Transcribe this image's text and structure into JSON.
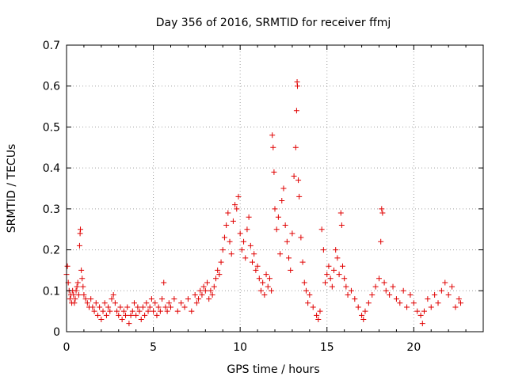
{
  "chart_data": {
    "type": "scatter",
    "title": "Day 356 of 2016, SRMTID for receiver ffmj",
    "xlabel": "GPS time / hours",
    "ylabel": "SRMTID / TECUs",
    "xlim": [
      0,
      24
    ],
    "ylim": [
      0,
      0.7
    ],
    "xticks": [
      "0",
      "5",
      "10",
      "15",
      "20"
    ],
    "xtick_values": [
      0,
      5,
      10,
      15,
      20
    ],
    "yticks": [
      "0",
      "0.1",
      "0.2",
      "0.3",
      "0.4",
      "0.5",
      "0.6",
      "0.7"
    ],
    "ytick_values": [
      0,
      0.1,
      0.2,
      0.3,
      0.4,
      0.5,
      0.6,
      0.7
    ],
    "grid": true,
    "marker": "+",
    "color": "#e00000",
    "series": [
      {
        "name": "SRMTID",
        "points": [
          [
            0.0,
            0.14
          ],
          [
            0.05,
            0.16
          ],
          [
            0.1,
            0.12
          ],
          [
            0.15,
            0.1
          ],
          [
            0.2,
            0.08
          ],
          [
            0.25,
            0.09
          ],
          [
            0.3,
            0.07
          ],
          [
            0.35,
            0.1
          ],
          [
            0.4,
            0.09
          ],
          [
            0.45,
            0.07
          ],
          [
            0.5,
            0.08
          ],
          [
            0.55,
            0.1
          ],
          [
            0.6,
            0.11
          ],
          [
            0.65,
            0.12
          ],
          [
            0.7,
            0.09
          ],
          [
            0.75,
            0.21
          ],
          [
            0.78,
            0.24
          ],
          [
            0.8,
            0.25
          ],
          [
            0.85,
            0.15
          ],
          [
            0.9,
            0.13
          ],
          [
            0.95,
            0.11
          ],
          [
            1.0,
            0.09
          ],
          [
            1.1,
            0.08
          ],
          [
            1.2,
            0.07
          ],
          [
            1.3,
            0.06
          ],
          [
            1.4,
            0.08
          ],
          [
            1.5,
            0.06
          ],
          [
            1.6,
            0.05
          ],
          [
            1.7,
            0.07
          ],
          [
            1.8,
            0.04
          ],
          [
            1.9,
            0.06
          ],
          [
            2.0,
            0.03
          ],
          [
            2.1,
            0.05
          ],
          [
            2.2,
            0.07
          ],
          [
            2.3,
            0.04
          ],
          [
            2.4,
            0.06
          ],
          [
            2.5,
            0.05
          ],
          [
            2.6,
            0.08
          ],
          [
            2.7,
            0.09
          ],
          [
            2.8,
            0.07
          ],
          [
            2.9,
            0.05
          ],
          [
            3.0,
            0.04
          ],
          [
            3.1,
            0.06
          ],
          [
            3.2,
            0.03
          ],
          [
            3.3,
            0.05
          ],
          [
            3.4,
            0.04
          ],
          [
            3.5,
            0.06
          ],
          [
            3.6,
            0.02
          ],
          [
            3.7,
            0.04
          ],
          [
            3.8,
            0.05
          ],
          [
            3.9,
            0.07
          ],
          [
            4.0,
            0.04
          ],
          [
            4.1,
            0.06
          ],
          [
            4.2,
            0.05
          ],
          [
            4.3,
            0.03
          ],
          [
            4.4,
            0.06
          ],
          [
            4.5,
            0.04
          ],
          [
            4.6,
            0.07
          ],
          [
            4.7,
            0.05
          ],
          [
            4.8,
            0.06
          ],
          [
            4.9,
            0.08
          ],
          [
            5.0,
            0.05
          ],
          [
            5.1,
            0.07
          ],
          [
            5.2,
            0.04
          ],
          [
            5.3,
            0.06
          ],
          [
            5.4,
            0.05
          ],
          [
            5.5,
            0.08
          ],
          [
            5.6,
            0.12
          ],
          [
            5.7,
            0.06
          ],
          [
            5.8,
            0.05
          ],
          [
            5.9,
            0.07
          ],
          [
            6.0,
            0.06
          ],
          [
            6.2,
            0.08
          ],
          [
            6.4,
            0.05
          ],
          [
            6.6,
            0.07
          ],
          [
            6.8,
            0.06
          ],
          [
            7.0,
            0.08
          ],
          [
            7.2,
            0.05
          ],
          [
            7.4,
            0.09
          ],
          [
            7.5,
            0.07
          ],
          [
            7.6,
            0.08
          ],
          [
            7.7,
            0.1
          ],
          [
            7.8,
            0.09
          ],
          [
            7.9,
            0.11
          ],
          [
            8.0,
            0.1
          ],
          [
            8.1,
            0.12
          ],
          [
            8.2,
            0.08
          ],
          [
            8.3,
            0.1
          ],
          [
            8.4,
            0.09
          ],
          [
            8.5,
            0.11
          ],
          [
            8.6,
            0.13
          ],
          [
            8.7,
            0.15
          ],
          [
            8.8,
            0.14
          ],
          [
            8.9,
            0.17
          ],
          [
            9.0,
            0.2
          ],
          [
            9.1,
            0.23
          ],
          [
            9.2,
            0.26
          ],
          [
            9.3,
            0.29
          ],
          [
            9.4,
            0.22
          ],
          [
            9.5,
            0.19
          ],
          [
            9.6,
            0.27
          ],
          [
            9.7,
            0.31
          ],
          [
            9.8,
            0.3
          ],
          [
            9.9,
            0.33
          ],
          [
            10.0,
            0.24
          ],
          [
            10.1,
            0.2
          ],
          [
            10.2,
            0.22
          ],
          [
            10.3,
            0.18
          ],
          [
            10.4,
            0.25
          ],
          [
            10.5,
            0.28
          ],
          [
            10.6,
            0.21
          ],
          [
            10.7,
            0.17
          ],
          [
            10.8,
            0.19
          ],
          [
            10.9,
            0.15
          ],
          [
            11.0,
            0.16
          ],
          [
            11.1,
            0.13
          ],
          [
            11.2,
            0.1
          ],
          [
            11.3,
            0.12
          ],
          [
            11.4,
            0.09
          ],
          [
            11.5,
            0.14
          ],
          [
            11.6,
            0.11
          ],
          [
            11.7,
            0.13
          ],
          [
            11.8,
            0.1
          ],
          [
            11.85,
            0.48
          ],
          [
            11.9,
            0.45
          ],
          [
            11.95,
            0.39
          ],
          [
            12.0,
            0.3
          ],
          [
            12.1,
            0.25
          ],
          [
            12.2,
            0.28
          ],
          [
            12.3,
            0.19
          ],
          [
            12.4,
            0.32
          ],
          [
            12.5,
            0.35
          ],
          [
            12.6,
            0.26
          ],
          [
            12.7,
            0.22
          ],
          [
            12.8,
            0.18
          ],
          [
            12.9,
            0.15
          ],
          [
            13.0,
            0.24
          ],
          [
            13.1,
            0.38
          ],
          [
            13.2,
            0.45
          ],
          [
            13.25,
            0.54
          ],
          [
            13.28,
            0.61
          ],
          [
            13.3,
            0.6
          ],
          [
            13.35,
            0.37
          ],
          [
            13.4,
            0.33
          ],
          [
            13.5,
            0.23
          ],
          [
            13.6,
            0.17
          ],
          [
            13.7,
            0.12
          ],
          [
            13.8,
            0.1
          ],
          [
            13.9,
            0.07
          ],
          [
            14.0,
            0.09
          ],
          [
            14.2,
            0.06
          ],
          [
            14.4,
            0.04
          ],
          [
            14.5,
            0.03
          ],
          [
            14.6,
            0.05
          ],
          [
            14.7,
            0.25
          ],
          [
            14.8,
            0.2
          ],
          [
            14.9,
            0.12
          ],
          [
            15.0,
            0.14
          ],
          [
            15.1,
            0.16
          ],
          [
            15.2,
            0.13
          ],
          [
            15.3,
            0.11
          ],
          [
            15.4,
            0.15
          ],
          [
            15.5,
            0.2
          ],
          [
            15.6,
            0.18
          ],
          [
            15.7,
            0.14
          ],
          [
            15.8,
            0.29
          ],
          [
            15.85,
            0.26
          ],
          [
            15.9,
            0.16
          ],
          [
            16.0,
            0.13
          ],
          [
            16.1,
            0.11
          ],
          [
            16.2,
            0.09
          ],
          [
            16.4,
            0.1
          ],
          [
            16.6,
            0.08
          ],
          [
            16.8,
            0.06
          ],
          [
            17.0,
            0.04
          ],
          [
            17.1,
            0.03
          ],
          [
            17.2,
            0.05
          ],
          [
            17.4,
            0.07
          ],
          [
            17.6,
            0.09
          ],
          [
            17.8,
            0.11
          ],
          [
            18.0,
            0.13
          ],
          [
            18.1,
            0.22
          ],
          [
            18.15,
            0.3
          ],
          [
            18.2,
            0.29
          ],
          [
            18.3,
            0.12
          ],
          [
            18.4,
            0.1
          ],
          [
            18.6,
            0.09
          ],
          [
            18.8,
            0.11
          ],
          [
            19.0,
            0.08
          ],
          [
            19.2,
            0.07
          ],
          [
            19.4,
            0.1
          ],
          [
            19.6,
            0.06
          ],
          [
            19.8,
            0.09
          ],
          [
            20.0,
            0.07
          ],
          [
            20.2,
            0.05
          ],
          [
            20.4,
            0.04
          ],
          [
            20.5,
            0.02
          ],
          [
            20.6,
            0.05
          ],
          [
            20.8,
            0.08
          ],
          [
            21.0,
            0.06
          ],
          [
            21.2,
            0.09
          ],
          [
            21.4,
            0.07
          ],
          [
            21.6,
            0.1
          ],
          [
            21.8,
            0.12
          ],
          [
            22.0,
            0.09
          ],
          [
            22.2,
            0.11
          ],
          [
            22.4,
            0.06
          ],
          [
            22.6,
            0.08
          ],
          [
            22.7,
            0.07
          ]
        ]
      }
    ]
  }
}
